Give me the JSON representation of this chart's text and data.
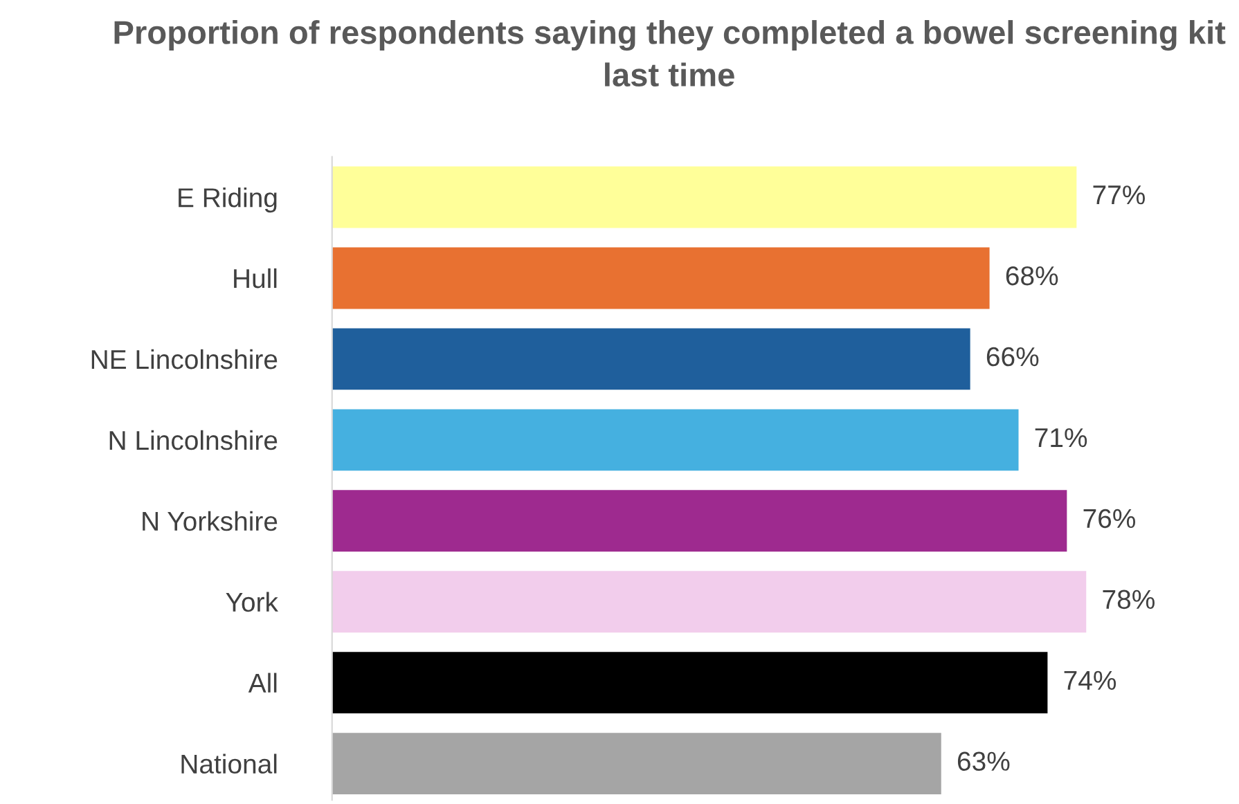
{
  "chart_data": {
    "type": "bar",
    "orientation": "horizontal",
    "title": "Proportion of respondents saying they completed a bowel screening kit last time",
    "categories": [
      "E Riding",
      "Hull",
      "NE Lincolnshire",
      "N Lincolnshire",
      "N Yorkshire",
      "York",
      "All",
      "National"
    ],
    "values": [
      77,
      68,
      66,
      71,
      76,
      78,
      74,
      63
    ],
    "colors": [
      "#ffff99",
      "#e87131",
      "#1f5f9c",
      "#45b0e0",
      "#9e2a8f",
      "#f2cdec",
      "#000000",
      "#a5a5a5"
    ],
    "value_labels": [
      "77%",
      "68%",
      "66%",
      "71%",
      "76%",
      "78%",
      "74%",
      "63%"
    ],
    "grid": false,
    "legend": false
  }
}
